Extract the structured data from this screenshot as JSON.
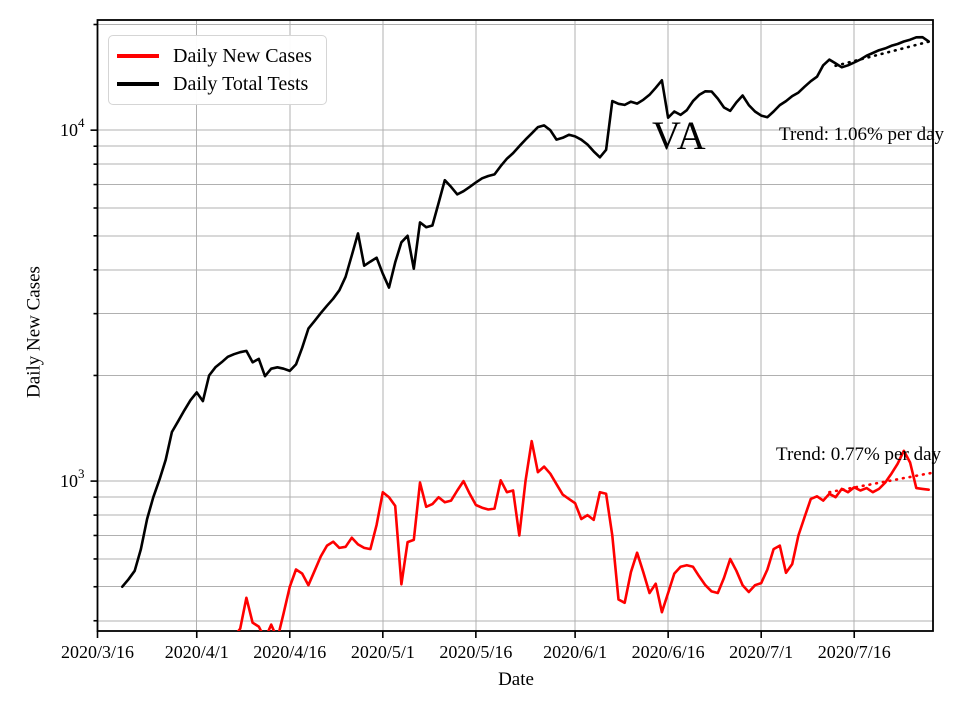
{
  "annotations": {
    "state": "VA",
    "tests_trend": "Trend: 1.06% per day",
    "cases_trend": "Trend: 0.77% per day"
  },
  "legend": {
    "position": "upper left",
    "items": [
      {
        "label": "Daily New Cases",
        "color": "#ff0000"
      },
      {
        "label": "Daily Total Tests",
        "color": "#000000"
      }
    ]
  },
  "chart_data": {
    "type": "line",
    "title": "",
    "xlabel": "Date",
    "ylabel": "Daily New Cases",
    "y_scale": "log",
    "ylim": [
      374,
      20600
    ],
    "x_range_days": [
      0,
      134.7
    ],
    "grid": true,
    "grid_color": "#b0b0b0",
    "x_tick_labels": [
      "2020/3/16",
      "2020/4/1",
      "2020/4/16",
      "2020/5/1",
      "2020/5/16",
      "2020/6/1",
      "2020/6/16",
      "2020/7/1",
      "2020/7/16"
    ],
    "x_tick_days": [
      0,
      16,
      31,
      46,
      61,
      77,
      92,
      107,
      122
    ],
    "y_major_ticks": [
      1000,
      10000
    ],
    "y_major_tick_exponents": [
      3,
      4
    ],
    "y_minor_ticks": [
      400,
      500,
      600,
      700,
      800,
      900,
      2000,
      3000,
      4000,
      5000,
      6000,
      7000,
      8000,
      9000,
      20000
    ],
    "series": [
      {
        "name": "Daily Total Tests",
        "color": "#000000",
        "start_date": "2020/3/20",
        "end_date": "2020/7/28",
        "start_day": 4,
        "values": [
          500,
          525,
          555,
          640,
          780,
          900,
          1010,
          1150,
          1380,
          1480,
          1590,
          1700,
          1790,
          1690,
          2000,
          2110,
          2180,
          2260,
          2300,
          2330,
          2350,
          2180,
          2230,
          1990,
          2090,
          2110,
          2090,
          2060,
          2150,
          2400,
          2720,
          2860,
          3010,
          3160,
          3310,
          3500,
          3820,
          4400,
          5080,
          4110,
          4220,
          4330,
          3900,
          3560,
          4200,
          4790,
          5000,
          4030,
          5460,
          5290,
          5350,
          6200,
          7200,
          6890,
          6560,
          6700,
          6890,
          7100,
          7290,
          7400,
          7480,
          7900,
          8290,
          8600,
          9000,
          9400,
          9790,
          10200,
          10320,
          10000,
          9400,
          9510,
          9700,
          9600,
          9390,
          9100,
          8700,
          8370,
          8790,
          12100,
          11890,
          11800,
          12050,
          11900,
          12200,
          12610,
          13200,
          13870,
          10850,
          11300,
          11050,
          11400,
          12100,
          12600,
          12900,
          12890,
          12300,
          11600,
          11350,
          12000,
          12550,
          11790,
          11300,
          11000,
          10890,
          11300,
          11790,
          12100,
          12500,
          12790,
          13300,
          13790,
          14200,
          15300,
          15890,
          15500,
          15100,
          15300,
          15590,
          15900,
          16300,
          16590,
          16900,
          17100,
          17390,
          17600,
          17890,
          18100,
          18390,
          18400,
          17900
        ]
      },
      {
        "name": "Daily New Cases",
        "color": "#ff0000",
        "start_date": "2020/4/7",
        "end_date": "2020/7/28",
        "start_day": 22,
        "values": [
          360,
          380,
          465,
          395,
          385,
          355,
          390,
          355,
          420,
          500,
          560,
          545,
          505,
          555,
          610,
          655,
          672,
          645,
          650,
          690,
          660,
          645,
          640,
          750,
          930,
          900,
          850,
          508,
          670,
          680,
          990,
          845,
          860,
          900,
          870,
          880,
          940,
          1000,
          920,
          855,
          840,
          830,
          835,
          1005,
          930,
          940,
          700,
          1000,
          1300,
          1060,
          1100,
          1050,
          980,
          915,
          890,
          865,
          780,
          800,
          775,
          930,
          920,
          700,
          460,
          450,
          550,
          625,
          550,
          480,
          510,
          423,
          480,
          545,
          570,
          576,
          570,
          535,
          505,
          485,
          480,
          530,
          600,
          555,
          505,
          483,
          505,
          512,
          560,
          640,
          655,
          548,
          580,
          700,
          790,
          890,
          905,
          880,
          920,
          900,
          950,
          930,
          960,
          940,
          955,
          930,
          950,
          990,
          1050,
          1120,
          1220,
          1130,
          955,
          950,
          945
        ]
      }
    ],
    "trend_lines": [
      {
        "name": "tests-trend",
        "color": "#000000",
        "style": "dotted",
        "start_day": 119,
        "end_day": 134.5,
        "start_value": 15250,
        "pct_per_day": 1.06
      },
      {
        "name": "cases-trend",
        "color": "#ff0000",
        "style": "dotted",
        "start_day": 118,
        "end_day": 134.5,
        "start_value": 930,
        "pct_per_day": 0.77
      }
    ]
  }
}
